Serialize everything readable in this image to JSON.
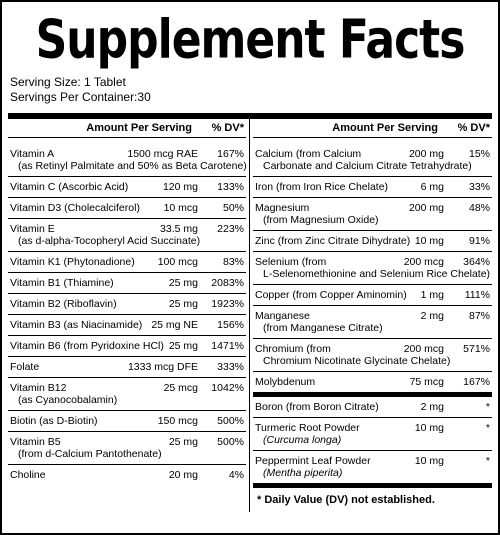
{
  "title": "Supplement Facts",
  "serving_size": "Serving Size: 1 Tablet",
  "servings_per_container": "Servings Per Container:30",
  "left": {
    "header": {
      "amount": "Amount Per Serving",
      "dv": "% DV*"
    },
    "rows": [
      {
        "name": "Vitamin A",
        "amount": "1500 mcg RAE",
        "dv": "167%",
        "sub": "(as Retinyl Palmitate and 50% as Beta Carotene)"
      },
      {
        "name": "Vitamin C (Ascorbic Acid)",
        "amount": "120 mg",
        "dv": "133%"
      },
      {
        "name": "Vitamin D3 (Cholecalciferol)",
        "amount": "10 mcg",
        "dv": "50%"
      },
      {
        "name": "Vitamin E",
        "amount": "33.5 mg",
        "dv": "223%",
        "sub": "(as d-alpha-Tocopheryl Acid Succinate)"
      },
      {
        "name": "Vitamin K1 (Phytonadione)",
        "amount": "100 mcg",
        "dv": "83%"
      },
      {
        "name": "Vitamin B1 (Thiamine)",
        "amount": "25 mg",
        "dv": "2083%"
      },
      {
        "name": "Vitamin B2 (Riboflavin)",
        "amount": "25 mg",
        "dv": "1923%"
      },
      {
        "name": "Vitamin B3 (as Niacinamide)",
        "amount": "25 mg NE",
        "dv": "156%"
      },
      {
        "name": "Vitamin B6 (from Pyridoxine HCl)",
        "amount": "25 mg",
        "dv": "1471%"
      },
      {
        "name": "Folate",
        "amount": "1333 mcg DFE",
        "dv": "333%"
      },
      {
        "name": "Vitamin B12",
        "amount": "25 mcg",
        "dv": "1042%",
        "sub": "(as Cyanocobalamin)"
      },
      {
        "name": "Biotin (as D-Biotin)",
        "amount": "150 mcg",
        "dv": "500%"
      },
      {
        "name": "Vitamin B5",
        "amount": "25 mg",
        "dv": "500%",
        "sub": "(from d-Calcium Pantothenate)"
      },
      {
        "name": "Choline",
        "amount": "20 mg",
        "dv": "4%"
      }
    ]
  },
  "right": {
    "header": {
      "amount": "Amount Per Serving",
      "dv": "% DV*"
    },
    "rows": [
      {
        "name": "Calcium (from Calcium",
        "amount": "200 mg",
        "dv": "15%",
        "sub": "Carbonate and Calcium Citrate Tetrahydrate)"
      },
      {
        "name": "Iron (from Iron Rice Chelate)",
        "amount": "6 mg",
        "dv": "33%"
      },
      {
        "name": "Magnesium",
        "amount": "200 mg",
        "dv": "48%",
        "sub": "(from Magnesium Oxide)"
      },
      {
        "name": "Zinc (from Zinc Citrate Dihydrate)",
        "amount": "10 mg",
        "dv": "91%"
      },
      {
        "name": "Selenium (from",
        "amount": "200 mcg",
        "dv": "364%",
        "sub": "L-Selenomethionine and Selenium Rice Chelate)"
      },
      {
        "name": "Copper (from Copper Aminomin)",
        "amount": "1 mg",
        "dv": "111%"
      },
      {
        "name": "Manganese",
        "amount": "2 mg",
        "dv": "87%",
        "sub": "(from Manganese Citrate)"
      },
      {
        "name": "Chromium (from",
        "amount": "200 mcg",
        "dv": "571%",
        "sub": "Chromium Nicotinate Glycinate Chelate)"
      },
      {
        "name": "Molybdenum",
        "amount": "75 mcg",
        "dv": "167%"
      }
    ],
    "other_rows": [
      {
        "name": "Boron (from Boron Citrate)",
        "amount": "2 mg",
        "dv": "*"
      },
      {
        "name": "Turmeric Root Powder",
        "amount": "10 mg",
        "dv": "*",
        "sub": "(Curcuma longa)",
        "sub_style": "italic"
      },
      {
        "name": "Peppermint Leaf Powder",
        "amount": "10 mg",
        "dv": "*",
        "sub": "(Mentha piperita)",
        "sub_style": "italic"
      }
    ],
    "footnote": "* Daily Value (DV) not established."
  }
}
